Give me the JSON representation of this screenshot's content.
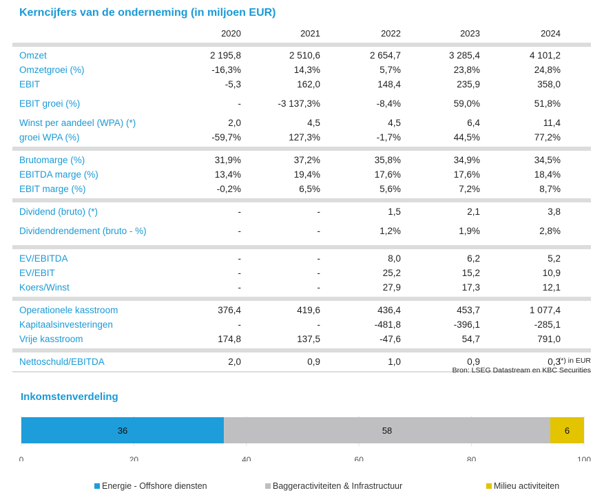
{
  "title": "Kerncijfers van de onderneming (in miljoen EUR)",
  "years": [
    "2020",
    "2021",
    "2022",
    "2023",
    "2024"
  ],
  "groups": [
    [
      {
        "label": "Omzet",
        "values": [
          "2 195,8",
          "2 510,6",
          "2 654,7",
          "3 285,4",
          "4 101,2"
        ]
      },
      {
        "label": "Omzetgroei (%)",
        "values": [
          "-16,3%",
          "14,3%",
          "5,7%",
          "23,8%",
          "24,8%"
        ]
      },
      {
        "label": "EBIT",
        "values": [
          "-5,3",
          "162,0",
          "148,4",
          "235,9",
          "358,0"
        ]
      },
      {
        "label": "EBIT groei (%)",
        "values": [
          "-",
          "-3 137,3%",
          "-8,4%",
          "59,0%",
          "51,8%"
        ],
        "tall": true
      },
      {
        "label": "Winst per aandeel (WPA) (*)",
        "values": [
          "2,0",
          "4,5",
          "4,5",
          "6,4",
          "11,4"
        ]
      },
      {
        "label": "groei WPA (%)",
        "values": [
          "-59,7%",
          "127,3%",
          "-1,7%",
          "44,5%",
          "77,2%"
        ]
      }
    ],
    [
      {
        "label": "Brutomarge (%)",
        "values": [
          "31,9%",
          "37,2%",
          "35,8%",
          "34,9%",
          "34,5%"
        ]
      },
      {
        "label": "EBITDA marge (%)",
        "values": [
          "13,4%",
          "19,4%",
          "17,6%",
          "17,6%",
          "18,4%"
        ]
      },
      {
        "label": "EBIT marge (%)",
        "values": [
          "-0,2%",
          "6,5%",
          "5,6%",
          "7,2%",
          "8,7%"
        ]
      }
    ],
    [
      {
        "label": "Dividend (bruto) (*)",
        "values": [
          "-",
          "-",
          "1,5",
          "2,1",
          "3,8"
        ]
      },
      {
        "label": "Dividendrendement (bruto - %)",
        "values": [
          "-",
          "-",
          "1,2%",
          "1,9%",
          "2,8%"
        ],
        "tall": true
      }
    ],
    [
      {
        "label": "EV/EBITDA",
        "values": [
          "-",
          "-",
          "8,0",
          "6,2",
          "5,2"
        ]
      },
      {
        "label": "EV/EBIT",
        "values": [
          "-",
          "-",
          "25,2",
          "15,2",
          "10,9"
        ]
      },
      {
        "label": "Koers/Winst",
        "values": [
          "-",
          "-",
          "27,9",
          "17,3",
          "12,1"
        ]
      }
    ],
    [
      {
        "label": "Operationele kasstroom",
        "values": [
          "376,4",
          "419,6",
          "436,4",
          "453,7",
          "1 077,4"
        ]
      },
      {
        "label": "Kapitaalsinvesteringen",
        "values": [
          "-",
          "-",
          "-481,8",
          "-396,1",
          "-285,1"
        ]
      },
      {
        "label": "Vrije kasstroom",
        "values": [
          "174,8",
          "137,5",
          "-47,6",
          "54,7",
          "791,0"
        ]
      }
    ],
    [
      {
        "label": "Nettoschuld/EBITDA",
        "values": [
          "2,0",
          "0,9",
          "1,0",
          "0,9",
          "0,3"
        ]
      }
    ]
  ],
  "footnote": "(*) in EUR",
  "source": "Bron: LSEG Datastream en KBC Securities",
  "chart_data": {
    "type": "bar",
    "stacked": true,
    "orientation": "horizontal",
    "title": "Inkomstenverdeling",
    "series": [
      {
        "name": "Energie - Offshore diensten",
        "values": [
          36
        ],
        "color": "#1e9ddb"
      },
      {
        "name": "Baggeractiviteiten & Infrastructuur",
        "values": [
          58
        ],
        "color": "#bfbfc1"
      },
      {
        "name": "Milieu activiteiten",
        "values": [
          6
        ],
        "color": "#e2c400"
      }
    ],
    "xlim": [
      0,
      100
    ],
    "xticks": [
      "0",
      "20",
      "40",
      "60",
      "80",
      "100"
    ],
    "grid": true,
    "legend": "bottom"
  }
}
